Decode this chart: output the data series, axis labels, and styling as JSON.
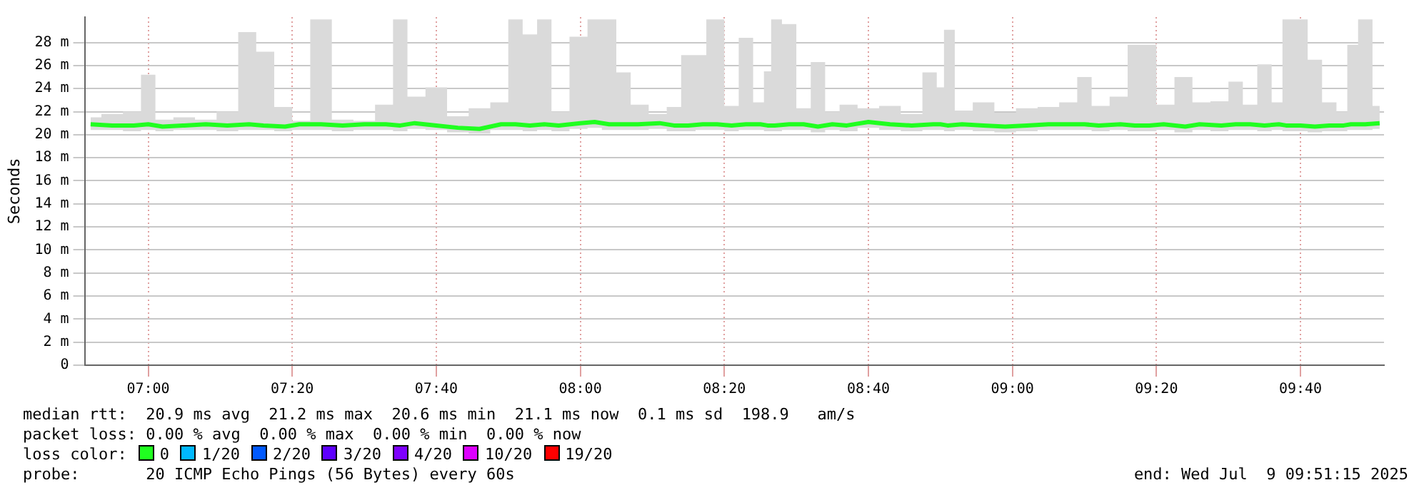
{
  "chart_data": {
    "type": "line",
    "ylabel": "Seconds",
    "xlim": [
      6.853,
      9.86
    ],
    "xticks": [
      {
        "value": 7,
        "label": "07:00"
      },
      {
        "value": 7.3333,
        "label": "07:20"
      },
      {
        "value": 7.6667,
        "label": "07:40"
      },
      {
        "value": 8,
        "label": "08:00"
      },
      {
        "value": 8.3333,
        "label": "08:20"
      },
      {
        "value": 8.6667,
        "label": "08:40"
      },
      {
        "value": 9,
        "label": "09:00"
      },
      {
        "value": 9.3333,
        "label": "09:20"
      },
      {
        "value": 9.6667,
        "label": "09:40"
      }
    ],
    "ylim": [
      0,
      30.2
    ],
    "yticks": [
      0,
      {
        "value": 2,
        "label": "2 m"
      },
      {
        "value": 4,
        "label": "4 m"
      },
      {
        "value": 6,
        "label": "6 m"
      },
      {
        "value": 8,
        "label": "8 m"
      },
      {
        "value": 10,
        "label": "10 m"
      },
      {
        "value": 12,
        "label": "12 m"
      },
      {
        "value": 14,
        "label": "14 m"
      },
      {
        "value": 16,
        "label": "16 m"
      },
      {
        "value": 18,
        "label": "18 m"
      },
      {
        "value": 20,
        "label": "20 m"
      },
      {
        "value": 22,
        "label": "22 m"
      },
      {
        "value": 24,
        "label": "24 m"
      },
      {
        "value": 26,
        "label": "26 m"
      },
      {
        "value": 28,
        "label": "28 m"
      }
    ],
    "x": [
      6.8667,
      6.9167,
      6.9667,
      7,
      7.0333,
      7.0833,
      7.1333,
      7.1833,
      7.2333,
      7.2667,
      7.3167,
      7.35,
      7.4,
      7.45,
      7.5,
      7.55,
      7.5833,
      7.6167,
      7.6667,
      7.7167,
      7.7667,
      7.8167,
      7.85,
      7.8833,
      7.9167,
      7.95,
      8,
      8.0333,
      8.0667,
      8.1,
      8.1333,
      8.1833,
      8.2167,
      8.25,
      8.2833,
      8.3,
      8.3167,
      8.35,
      8.3833,
      8.4167,
      8.4333,
      8.45,
      8.4833,
      8.5167,
      8.55,
      8.5833,
      8.6167,
      8.6667,
      8.7167,
      8.7667,
      8.8167,
      8.8333,
      8.85,
      8.8833,
      8.9333,
      8.9833,
      9.0333,
      9.0833,
      9.1333,
      9.1667,
      9.2,
      9.25,
      9.2833,
      9.3167,
      9.35,
      9.4,
      9.4333,
      9.4833,
      9.5167,
      9.55,
      9.5833,
      9.6167,
      9.6333,
      9.6667,
      9.7,
      9.7333,
      9.7667,
      9.7833,
      9.8167,
      9.85
    ],
    "series": [
      {
        "name": "0",
        "color": "#20ff20",
        "values": [
          20.9,
          20.8,
          20.8,
          20.9,
          20.7,
          20.8,
          20.9,
          20.8,
          20.9,
          20.8,
          20.7,
          20.9,
          20.9,
          20.8,
          20.9,
          20.9,
          20.8,
          21.0,
          20.8,
          20.6,
          20.5,
          20.9,
          20.9,
          20.8,
          20.9,
          20.8,
          21.0,
          21.1,
          20.9,
          20.9,
          20.9,
          21.0,
          20.8,
          20.8,
          20.9,
          20.9,
          20.9,
          20.8,
          20.9,
          20.9,
          20.8,
          20.8,
          20.9,
          20.9,
          20.7,
          20.9,
          20.8,
          21.1,
          20.9,
          20.8,
          20.9,
          20.9,
          20.8,
          20.9,
          20.8,
          20.7,
          20.8,
          20.9,
          20.9,
          20.9,
          20.8,
          20.9,
          20.8,
          20.8,
          20.9,
          20.7,
          20.9,
          20.8,
          20.9,
          20.9,
          20.8,
          20.9,
          20.8,
          20.8,
          20.7,
          20.8,
          20.8,
          20.9,
          20.9,
          21.0
        ],
        "lower": [
          20.4,
          20.4,
          20.3,
          20.4,
          20.3,
          20.4,
          20.4,
          20.3,
          20.4,
          20.4,
          20.3,
          20.4,
          20.4,
          20.3,
          20.4,
          20.4,
          20.3,
          20.5,
          20.4,
          20.2,
          20.1,
          20.4,
          20.4,
          20.3,
          20.4,
          20.3,
          20.5,
          20.6,
          20.4,
          20.4,
          20.4,
          20.5,
          20.3,
          20.3,
          20.4,
          20.4,
          20.4,
          20.3,
          20.4,
          20.4,
          20.3,
          20.3,
          20.4,
          20.4,
          20.2,
          20.4,
          20.3,
          20.6,
          20.4,
          20.3,
          20.4,
          20.4,
          20.3,
          20.4,
          20.3,
          20.2,
          20.3,
          20.4,
          20.4,
          20.4,
          20.3,
          20.4,
          20.3,
          20.3,
          20.4,
          20.2,
          20.4,
          20.3,
          20.4,
          20.4,
          20.3,
          20.4,
          20.3,
          20.3,
          20.2,
          20.3,
          20.3,
          20.4,
          20.4,
          20.5
        ],
        "upper": [
          21.5,
          21.8,
          22.0,
          25.2,
          21.3,
          21.5,
          21.3,
          22.0,
          28.9,
          27.2,
          22.4,
          21.2,
          30,
          21.3,
          21.2,
          22.6,
          30,
          23.3,
          24.1,
          21.6,
          22.3,
          22.8,
          30,
          28.7,
          30,
          22.0,
          28.5,
          30,
          30,
          25.4,
          22.6,
          21.8,
          22.4,
          26.9,
          26.9,
          30,
          30,
          22.5,
          28.4,
          22.8,
          25.5,
          30,
          29.6,
          22.3,
          26.3,
          22.0,
          22.6,
          22.3,
          22.5,
          21.8,
          25.4,
          24.1,
          29.1,
          22.1,
          22.8,
          21.9,
          22.3,
          22.4,
          22.8,
          25.0,
          22.5,
          23.3,
          27.8,
          27.8,
          22.6,
          25.0,
          22.8,
          22.9,
          24.6,
          22.6,
          26.1,
          22.8,
          30,
          30,
          26.5,
          22.8,
          22.0,
          27.8,
          30,
          22.5
        ]
      },
      {
        "name": "1/20",
        "color": "#00b8ff",
        "values": [
          null,
          null,
          null,
          null,
          null,
          null,
          null,
          null,
          null,
          null,
          null,
          null,
          null,
          null,
          null,
          null,
          null,
          null,
          null,
          null,
          null,
          null,
          null,
          null,
          null,
          null,
          null,
          null,
          null,
          null,
          null,
          null,
          null,
          null,
          null,
          null,
          null,
          null,
          null,
          null,
          null,
          null,
          null,
          null,
          null,
          null,
          null,
          null,
          null,
          null,
          null,
          null,
          null,
          null,
          null,
          null,
          null,
          null,
          null,
          null,
          null,
          null,
          null,
          null,
          null,
          null,
          null,
          null,
          null,
          null,
          null,
          null,
          null,
          null,
          null,
          null,
          null,
          null,
          null,
          null
        ]
      },
      {
        "name": "2/20",
        "color": "#0059ff",
        "values": [
          null,
          null,
          null,
          null,
          null,
          null,
          null,
          null,
          null,
          null,
          null,
          null,
          null,
          null,
          null,
          null,
          null,
          null,
          null,
          null,
          null,
          null,
          null,
          null,
          null,
          null,
          null,
          null,
          null,
          null,
          null,
          null,
          null,
          null,
          null,
          null,
          null,
          null,
          null,
          null,
          null,
          null,
          null,
          null,
          null,
          null,
          null,
          null,
          null,
          null,
          null,
          null,
          null,
          null,
          null,
          null,
          null,
          null,
          null,
          null,
          null,
          null,
          null,
          null,
          null,
          null,
          null,
          null,
          null,
          null,
          null,
          null,
          null,
          null,
          null,
          null,
          null,
          null,
          null,
          null
        ]
      },
      {
        "name": "3/20",
        "color": "#5e00ff",
        "values": [
          null,
          null,
          null,
          null,
          null,
          null,
          null,
          null,
          null,
          null,
          null,
          null,
          null,
          null,
          null,
          null,
          null,
          null,
          null,
          null,
          null,
          null,
          null,
          null,
          null,
          null,
          null,
          null,
          null,
          null,
          null,
          null,
          null,
          null,
          null,
          null,
          null,
          null,
          null,
          null,
          null,
          null,
          null,
          null,
          null,
          null,
          null,
          null,
          null,
          null,
          null,
          null,
          null,
          null,
          null,
          null,
          null,
          null,
          null,
          null,
          null,
          null,
          null,
          null,
          null,
          null,
          null,
          null,
          null,
          null,
          null,
          null,
          null,
          null,
          null,
          null,
          null,
          null,
          null,
          null
        ]
      },
      {
        "name": "4/20",
        "color": "#7e00ff",
        "values": [
          null,
          null,
          null,
          null,
          null,
          null,
          null,
          null,
          null,
          null,
          null,
          null,
          null,
          null,
          null,
          null,
          null,
          null,
          null,
          null,
          null,
          null,
          null,
          null,
          null,
          null,
          null,
          null,
          null,
          null,
          null,
          null,
          null,
          null,
          null,
          null,
          null,
          null,
          null,
          null,
          null,
          null,
          null,
          null,
          null,
          null,
          null,
          null,
          null,
          null,
          null,
          null,
          null,
          null,
          null,
          null,
          null,
          null,
          null,
          null,
          null,
          null,
          null,
          null,
          null,
          null,
          null,
          null,
          null,
          null,
          null,
          null,
          null,
          null,
          null,
          null,
          null,
          null,
          null,
          null
        ]
      },
      {
        "name": "10/20",
        "color": "#dd00ff",
        "values": [
          null,
          null,
          null,
          null,
          null,
          null,
          null,
          null,
          null,
          null,
          null,
          null,
          null,
          null,
          null,
          null,
          null,
          null,
          null,
          null,
          null,
          null,
          null,
          null,
          null,
          null,
          null,
          null,
          null,
          null,
          null,
          null,
          null,
          null,
          null,
          null,
          null,
          null,
          null,
          null,
          null,
          null,
          null,
          null,
          null,
          null,
          null,
          null,
          null,
          null,
          null,
          null,
          null,
          null,
          null,
          null,
          null,
          null,
          null,
          null,
          null,
          null,
          null,
          null,
          null,
          null,
          null,
          null,
          null,
          null,
          null,
          null,
          null,
          null,
          null,
          null,
          null,
          null,
          null,
          null
        ]
      },
      {
        "name": "19/20",
        "color": "#ff0000",
        "values": [
          null,
          null,
          null,
          null,
          null,
          null,
          null,
          null,
          null,
          null,
          null,
          null,
          null,
          null,
          null,
          null,
          null,
          null,
          null,
          null,
          null,
          null,
          null,
          null,
          null,
          null,
          null,
          null,
          null,
          null,
          null,
          null,
          null,
          null,
          null,
          null,
          null,
          null,
          null,
          null,
          null,
          null,
          null,
          null,
          null,
          null,
          null,
          null,
          null,
          null,
          null,
          null,
          null,
          null,
          null,
          null,
          null,
          null,
          null,
          null,
          null,
          null,
          null,
          null,
          null,
          null,
          null,
          null,
          null,
          null,
          null,
          null,
          null,
          null,
          null,
          null,
          null,
          null,
          null,
          null
        ]
      }
    ],
    "legend": "bottom",
    "legend_title": "loss color:",
    "grid": true,
    "marker": "none",
    "annotations": [
      "median rtt:  20.9 ms avg  21.2 ms max  20.6 ms min  21.1 ms now  0.1 ms sd  198.9   am/s",
      "packet loss: 0.00 % avg  0.00 % max  0.00 % min  0.00 % now",
      "probe:       20 ICMP Echo Pings (56 Bytes) every 60s",
      "end: Wed Jul  9 09:51:15 2025"
    ]
  }
}
